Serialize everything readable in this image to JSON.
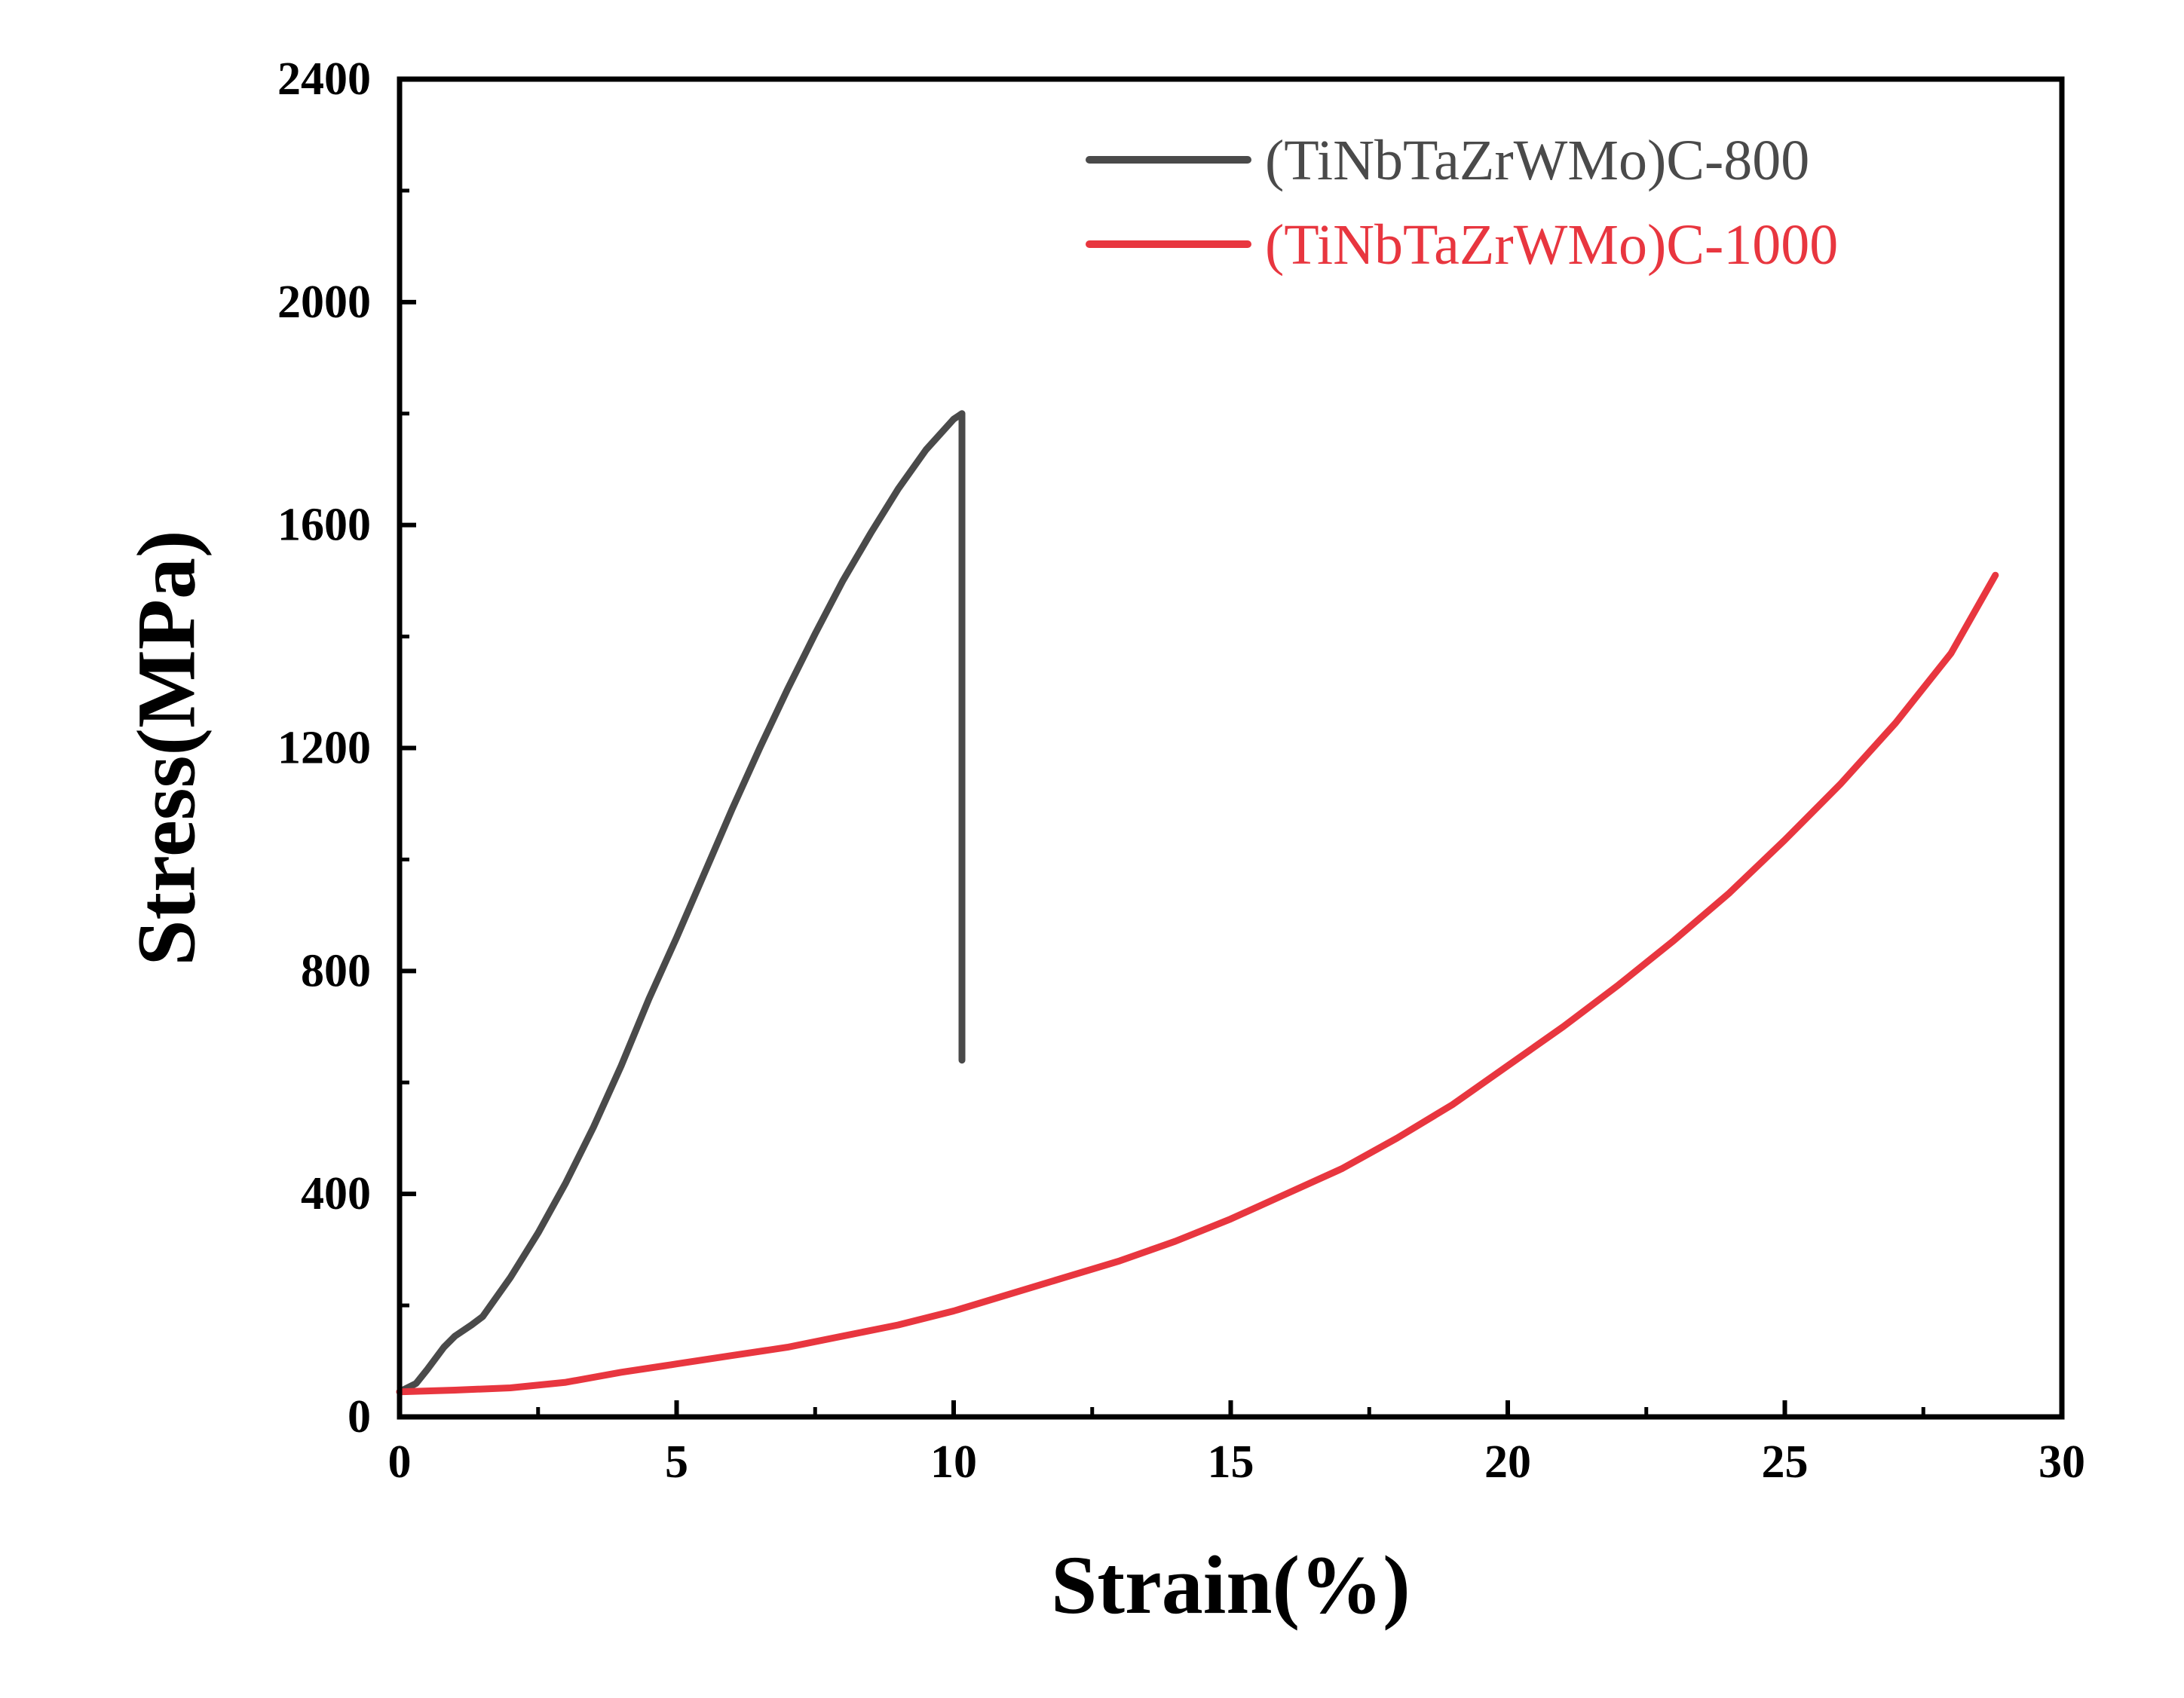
{
  "chart_data": {
    "type": "line",
    "title": "",
    "xlabel": "Strain(%)",
    "ylabel": "Stress(MPa)",
    "xlim": [
      0,
      30
    ],
    "ylim": [
      0,
      2400
    ],
    "xticks": [
      0,
      5,
      10,
      15,
      20,
      25,
      30
    ],
    "xtick_labels": [
      "0",
      "5",
      "10",
      "15",
      "20",
      "25",
      "30"
    ],
    "yticks": [
      0,
      400,
      800,
      1200,
      1600,
      2000,
      2400
    ],
    "ytick_labels": [
      "0",
      "400",
      "800",
      "1200",
      "1600",
      "2000",
      "2400"
    ],
    "grid": false,
    "legend_position": "top-right",
    "series": [
      {
        "name": "(TiNbTaZrWMo)C-800",
        "color": "#4a4a4a",
        "x": [
          0,
          0.3,
          0.5,
          0.8,
          1.0,
          1.3,
          1.5,
          2.0,
          2.5,
          3.0,
          3.5,
          4.0,
          4.5,
          5.0,
          5.5,
          6.0,
          6.5,
          7.0,
          7.5,
          8.0,
          8.5,
          9.0,
          9.5,
          10.0,
          10.15,
          10.15,
          10.15
        ],
        "y": [
          45,
          60,
          85,
          125,
          145,
          165,
          180,
          250,
          330,
          420,
          520,
          630,
          750,
          860,
          975,
          1090,
          1200,
          1305,
          1405,
          1500,
          1585,
          1665,
          1735,
          1790,
          1800,
          1180,
          640
        ]
      },
      {
        "name": "(TiNbTaZrWMo)C-1000",
        "color": "#e8363f",
        "x": [
          0,
          1,
          2,
          3,
          4,
          4.8,
          5,
          6,
          7,
          8,
          9,
          10,
          11,
          12,
          13,
          14,
          15,
          16,
          17,
          18,
          19,
          20,
          21,
          22,
          23,
          24,
          25,
          26,
          27,
          28,
          28.8
        ],
        "y": [
          45,
          48,
          52,
          62,
          80,
          92,
          95,
          110,
          125,
          145,
          165,
          190,
          220,
          250,
          280,
          315,
          355,
          400,
          445,
          500,
          560,
          630,
          700,
          775,
          855,
          940,
          1035,
          1135,
          1245,
          1370,
          1510
        ]
      }
    ]
  }
}
